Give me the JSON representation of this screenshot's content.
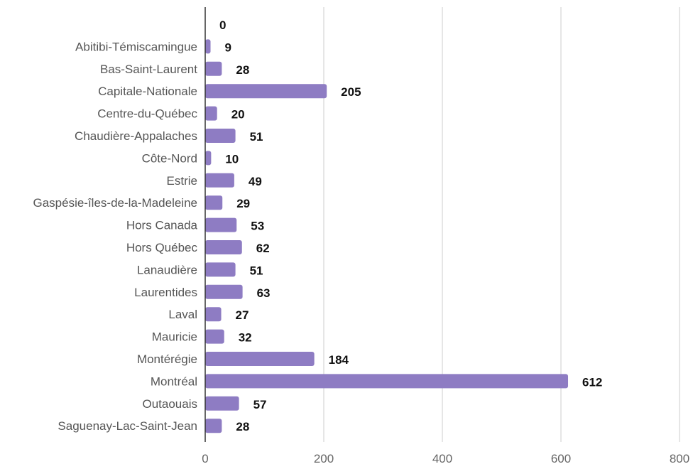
{
  "chart_data": {
    "type": "bar",
    "orientation": "horizontal",
    "categories": [
      "",
      "Abitibi-Témiscamingue",
      "Bas-Saint-Laurent",
      "Capitale-Nationale",
      "Centre-du-Québec",
      "Chaudière-Appalaches",
      "Côte-Nord",
      "Estrie",
      "Gaspésie-îles-de-la-Madeleine",
      "Hors Canada",
      "Hors Québec",
      "Lanaudière",
      "Laurentides",
      "Laval",
      "Mauricie",
      "Montérégie",
      "Montréal",
      "Outaouais",
      "Saguenay-Lac-Saint-Jean"
    ],
    "values": [
      0,
      9,
      28,
      205,
      20,
      51,
      10,
      49,
      29,
      53,
      62,
      51,
      63,
      27,
      32,
      184,
      612,
      57,
      28
    ],
    "title": "",
    "xlabel": "",
    "ylabel": "",
    "xlim": [
      0,
      800
    ],
    "xticks": [
      0,
      200,
      400,
      600,
      800
    ],
    "grid": true,
    "legend": "none",
    "bar_color": "#8e7cc3"
  }
}
